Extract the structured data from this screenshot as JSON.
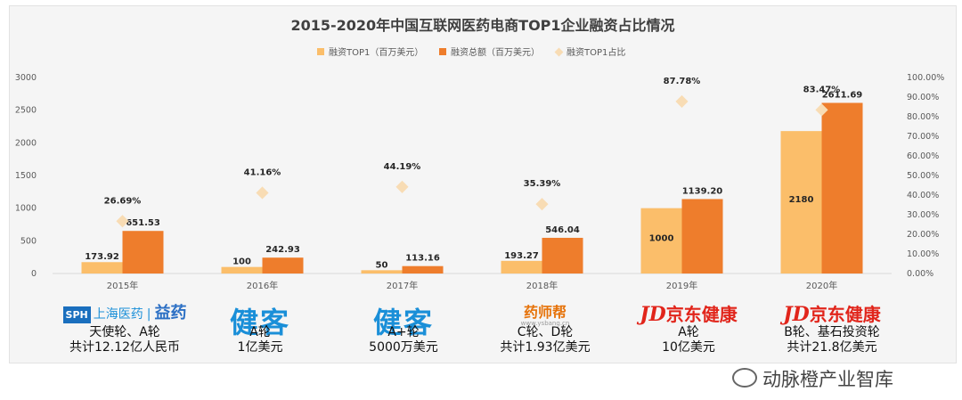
{
  "chart_data": {
    "type": "bar+scatter",
    "title": "2015-2020年中国互联网医药电商TOP1企业融资占比情况",
    "legend": [
      "融资TOP1（百万美元）",
      "融资总额（百万美元）",
      "融资TOP1占比"
    ],
    "legend_position": "top-center",
    "categories": [
      "2015年",
      "2016年",
      "2017年",
      "2018年",
      "2019年",
      "2020年"
    ],
    "series": [
      {
        "name": "融资TOP1（百万美元）",
        "type": "bar",
        "color": "#FBBE6A",
        "values": [
          173.92,
          100,
          50,
          193.27,
          1000,
          2180
        ],
        "labels": [
          "173.92",
          "100",
          "50",
          "193.27",
          "1000",
          "2180"
        ]
      },
      {
        "name": "融资总额（百万美元）",
        "type": "bar",
        "color": "#EE7D2C",
        "values": [
          651.53,
          242.93,
          113.16,
          546.04,
          1139.2,
          2611.69
        ],
        "labels": [
          "651.53",
          "242.93",
          "113.16",
          "546.04",
          "1139.20",
          "2611.69"
        ]
      },
      {
        "name": "融资TOP1占比",
        "type": "scatter",
        "axis": "right",
        "color": "#F8DCB4",
        "values": [
          26.69,
          41.16,
          44.19,
          35.39,
          87.78,
          83.47
        ],
        "labels": [
          "26.69%",
          "41.16%",
          "44.19%",
          "35.39%",
          "87.78%",
          "83.47%"
        ]
      }
    ],
    "y_left": {
      "min": 0,
      "max": 3000,
      "ticks": [
        "0",
        "500",
        "1000",
        "1500",
        "2000",
        "2500",
        "3000"
      ]
    },
    "y_right": {
      "min": 0,
      "max": 100,
      "ticks": [
        "0.00%",
        "10.00%",
        "20.00%",
        "30.00%",
        "40.00%",
        "50.00%",
        "60.00%",
        "70.00%",
        "80.00%",
        "90.00%",
        "100.00%"
      ]
    },
    "grid": false
  },
  "companies": [
    {
      "logo": "上海医药 | 益药",
      "caption": [
        "天使轮、A轮",
        "共计12.12亿人民币"
      ]
    },
    {
      "logo": "健客",
      "caption": [
        "A轮",
        "1亿美元"
      ]
    },
    {
      "logo": "健客",
      "caption": [
        "A+轮",
        "5000万美元"
      ]
    },
    {
      "logo": "药师帮",
      "caption": [
        "C轮、D轮",
        "共计1.93亿美元"
      ]
    },
    {
      "logo": "JD京东健康",
      "caption": [
        "A轮",
        "10亿美元"
      ]
    },
    {
      "logo": "JD京东健康",
      "caption": [
        "B轮、基石投资轮",
        "共计21.8亿美元"
      ]
    }
  ],
  "logos": {
    "sph_box": "SPH",
    "sph_name": "上海医药",
    "yiyao": "益药",
    "jianke": "健客",
    "ysb": "药师帮",
    "ysb_url": "www.ysbang.cn",
    "jd": "JD",
    "jd_name": "京东健康"
  },
  "watermark": "动脉橙产业智库"
}
